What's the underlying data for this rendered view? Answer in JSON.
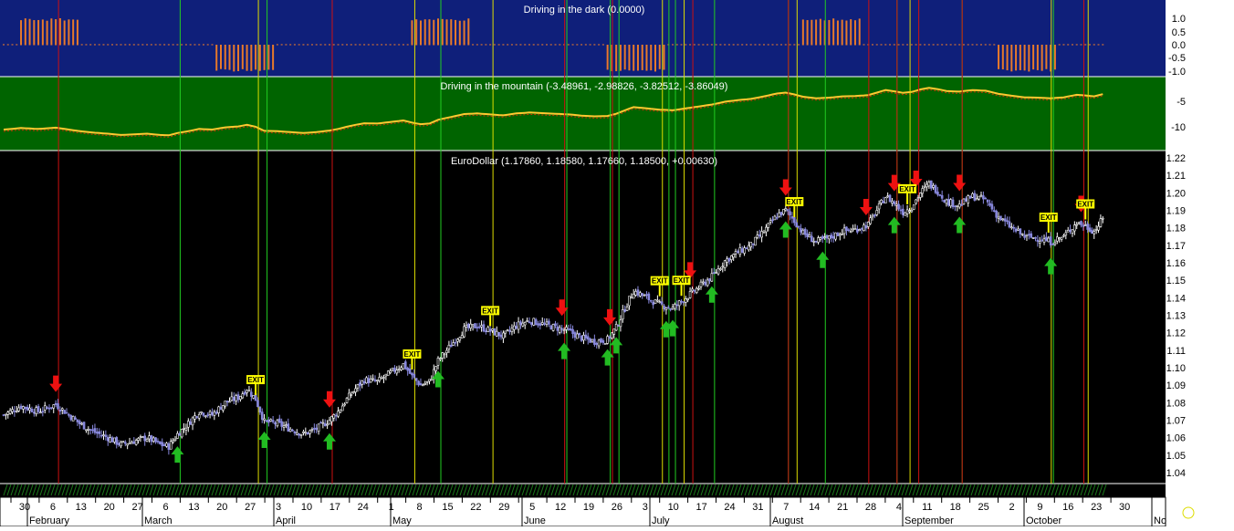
{
  "panes": {
    "dark": {
      "title": "Driving in the dark (0.0000)",
      "bg": "#0f1f7a",
      "bar_color": "#e8792b",
      "ticks": [
        "1.0",
        "0.5",
        "0.0",
        "-0.5",
        "-1.0"
      ]
    },
    "mountain": {
      "title": "Driving in the mountain (-3.48961, -2.98826, -3.82512, -3.86049)",
      "bg": "#006400",
      "line_color": "#ffc830",
      "ticks": [
        "-5",
        "-10"
      ]
    },
    "price": {
      "title": "EuroDollar (1.17860, 1.18580, 1.17660, 1.18500, +0.00630)",
      "bg": "#000000",
      "ticks": [
        "1.22",
        "1.21",
        "1.20",
        "1.19",
        "1.18",
        "1.17",
        "1.16",
        "1.15",
        "1.14",
        "1.13",
        "1.12",
        "1.11",
        "1.10",
        "1.09",
        "1.08",
        "1.07",
        "1.06",
        "1.05",
        "1.04"
      ]
    }
  },
  "date_axis": {
    "days": [
      "30",
      "6",
      "13",
      "20",
      "27",
      "6",
      "13",
      "20",
      "27",
      "3",
      "10",
      "17",
      "24",
      "1",
      "8",
      "15",
      "22",
      "29",
      "5",
      "12",
      "19",
      "26",
      "3",
      "10",
      "17",
      "24",
      "31",
      "7",
      "14",
      "21",
      "28",
      "4",
      "11",
      "18",
      "25",
      "2",
      "9",
      "16",
      "23",
      "30"
    ],
    "months": [
      "February",
      "March",
      "April",
      "May",
      "June",
      "July",
      "August",
      "September",
      "October",
      "No"
    ]
  },
  "signals": {
    "exit_label": "EXIT"
  },
  "colors": {
    "up_candle": "#ffffff",
    "down_candle": "#8888dd",
    "buy_arrow": "#22bb22",
    "sell_arrow": "#ee1111",
    "exit_box": "#ffff00",
    "vline_yellow": "#dddd00",
    "vline_green": "#22cc22",
    "vline_red": "#cc1111"
  },
  "chart_data": {
    "type": "candlestick",
    "title": "EuroDollar (1.17860, 1.18580, 1.17660, 1.18500, +0.00630)",
    "ylim": [
      1.035,
      1.225
    ],
    "close_path": [
      [
        0,
        1.073
      ],
      [
        8,
        1.078
      ],
      [
        16,
        1.075
      ],
      [
        24,
        1.079
      ],
      [
        30,
        1.073
      ],
      [
        35,
        1.068
      ],
      [
        42,
        1.063
      ],
      [
        48,
        1.06
      ],
      [
        54,
        1.056
      ],
      [
        60,
        1.058
      ],
      [
        66,
        1.06
      ],
      [
        72,
        1.056
      ],
      [
        76,
        1.055
      ],
      [
        80,
        1.062
      ],
      [
        85,
        1.068
      ],
      [
        90,
        1.075
      ],
      [
        96,
        1.073
      ],
      [
        102,
        1.08
      ],
      [
        108,
        1.083
      ],
      [
        112,
        1.088
      ],
      [
        116,
        1.082
      ],
      [
        120,
        1.069
      ],
      [
        126,
        1.068
      ],
      [
        132,
        1.065
      ],
      [
        138,
        1.062
      ],
      [
        144,
        1.065
      ],
      [
        150,
        1.07
      ],
      [
        154,
        1.075
      ],
      [
        158,
        1.082
      ],
      [
        162,
        1.088
      ],
      [
        166,
        1.093
      ],
      [
        172,
        1.092
      ],
      [
        178,
        1.097
      ],
      [
        184,
        1.102
      ],
      [
        188,
        1.095
      ],
      [
        192,
        1.09
      ],
      [
        196,
        1.092
      ],
      [
        200,
        1.104
      ],
      [
        206,
        1.113
      ],
      [
        212,
        1.122
      ],
      [
        218,
        1.124
      ],
      [
        224,
        1.121
      ],
      [
        230,
        1.118
      ],
      [
        236,
        1.124
      ],
      [
        242,
        1.127
      ],
      [
        248,
        1.125
      ],
      [
        254,
        1.123
      ],
      [
        260,
        1.121
      ],
      [
        266,
        1.117
      ],
      [
        272,
        1.115
      ],
      [
        278,
        1.116
      ],
      [
        282,
        1.123
      ],
      [
        286,
        1.134
      ],
      [
        290,
        1.144
      ],
      [
        296,
        1.14
      ],
      [
        302,
        1.136
      ],
      [
        308,
        1.134
      ],
      [
        314,
        1.14
      ],
      [
        320,
        1.146
      ],
      [
        326,
        1.152
      ],
      [
        332,
        1.161
      ],
      [
        338,
        1.166
      ],
      [
        344,
        1.17
      ],
      [
        350,
        1.178
      ],
      [
        356,
        1.187
      ],
      [
        360,
        1.19
      ],
      [
        364,
        1.184
      ],
      [
        368,
        1.177
      ],
      [
        374,
        1.172
      ],
      [
        380,
        1.174
      ],
      [
        386,
        1.178
      ],
      [
        392,
        1.179
      ],
      [
        398,
        1.182
      ],
      [
        402,
        1.19
      ],
      [
        406,
        1.198
      ],
      [
        410,
        1.194
      ],
      [
        414,
        1.189
      ],
      [
        418,
        1.192
      ],
      [
        422,
        1.2
      ],
      [
        426,
        1.205
      ],
      [
        430,
        1.201
      ],
      [
        434,
        1.195
      ],
      [
        440,
        1.193
      ],
      [
        446,
        1.198
      ],
      [
        452,
        1.196
      ],
      [
        458,
        1.186
      ],
      [
        464,
        1.18
      ],
      [
        470,
        1.175
      ],
      [
        476,
        1.174
      ],
      [
        482,
        1.172
      ],
      [
        488,
        1.175
      ],
      [
        494,
        1.183
      ],
      [
        498,
        1.181
      ],
      [
        502,
        1.178
      ],
      [
        506,
        1.185
      ]
    ],
    "buy_signals": [
      80,
      120,
      150,
      200,
      258,
      278,
      282,
      305,
      308,
      326,
      360,
      377,
      410,
      440,
      482
    ],
    "sell_signals": [
      24,
      150,
      257,
      279,
      316,
      360,
      397,
      410,
      420,
      440,
      496
    ],
    "exit_signals": [
      116,
      188,
      224,
      302,
      312,
      364,
      416,
      481,
      498
    ]
  }
}
